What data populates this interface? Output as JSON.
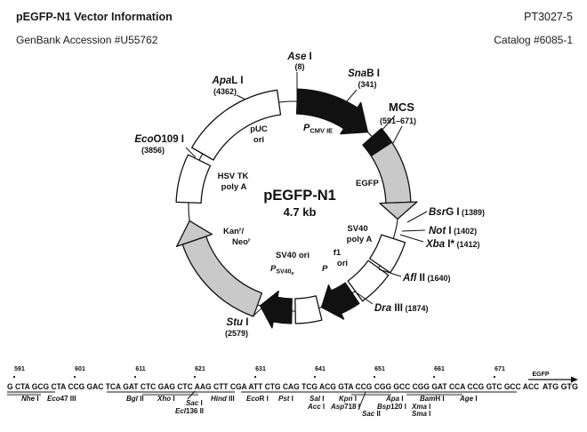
{
  "colors": {
    "ink": "#111111",
    "arrow_gray": "#c9c9c9",
    "bar_gray": "#9b9b9b"
  },
  "header": {
    "title": "pEGFP-N1 Vector Information",
    "part_number": "PT3027-5",
    "accession": "GenBank Accession #U55762",
    "catalog": "Catalog #6085-1"
  },
  "plasmid": {
    "name": "pEGFP-N1",
    "size": "4.7 kb",
    "sites": [
      {
        "italic": "Ase",
        "roman": " I",
        "pos": "(8)"
      },
      {
        "italic": "Sna",
        "roman": "B I",
        "pos": "(341)"
      },
      {
        "italic": "",
        "roman": "MCS",
        "pos": "(591–671)"
      },
      {
        "italic": "Bsr",
        "roman": "G I",
        "pos": " (1389)"
      },
      {
        "italic": "Not",
        "roman": " I",
        "pos": " (1402)"
      },
      {
        "italic": "Xba",
        "roman": " I*",
        "pos": " (1412)"
      },
      {
        "italic": "Afl",
        "roman": " II",
        "pos": " (1640)"
      },
      {
        "italic": "Dra",
        "roman": " III",
        "pos": " (1874)"
      },
      {
        "italic": "Stu",
        "roman": " I",
        "pos": "(2579)"
      },
      {
        "italic": "Eco",
        "roman": "O109 I",
        "pos": "(3856)"
      },
      {
        "italic": "Apa",
        "roman": "L I",
        "pos": "(4362)"
      }
    ],
    "features": {
      "pcmv_p": "P",
      "pcmv_sub": "CMV IE",
      "egfp": "EGFP",
      "puc_1": "pUC",
      "puc_2": "ori",
      "hsvtk_1": "HSV TK",
      "hsvtk_2": "poly A",
      "kan": "Kan",
      "neo": "Neo",
      "sup_r": "r",
      "slash": "/",
      "sv40pa_1": "SV40",
      "sv40pa_2": "poly A",
      "f1_1": "f1",
      "f1_2": "ori",
      "sv40ori": "SV40 ori",
      "psv40_p": "P",
      "psv40_sub": "SV40",
      "psv40_sub2": "e",
      "p_label": "P"
    }
  },
  "mcs": {
    "ruler": [
      "591",
      "601",
      "611",
      "621",
      "631",
      "641",
      "651",
      "661",
      "671"
    ],
    "egfp_arrow_label": "EGFP",
    "sequence": "G CTA GCG CTA CCG GAC TCA GAT CTC GAG CTC AAG CTT CGA ATT CTG CAG TCG ACG GTA CCG CGG GCC CGG GAT CCA CCG GTC GCC ACC",
    "start_codon": "ATG GTG",
    "labels": [
      {
        "i": "Nhe",
        "r": " I"
      },
      {
        "i": "Eco",
        "r": "47 III"
      },
      {
        "i": "Bgl",
        "r": " II"
      },
      {
        "i": "Xho",
        "r": " I"
      },
      {
        "i": "Sac",
        "r": " I"
      },
      {
        "i": "Ecl",
        "r": "136 II"
      },
      {
        "i": "Hind",
        "r": " III"
      },
      {
        "i": "Eco",
        "r": "R I"
      },
      {
        "i": "Pst",
        "r": " I"
      },
      {
        "i": "Sal",
        "r": " I"
      },
      {
        "i": "Acc",
        "r": " I"
      },
      {
        "i": "Kpn",
        "r": " I"
      },
      {
        "i": "Asp",
        "r": "718 I"
      },
      {
        "i": "Sac",
        "r": " II"
      },
      {
        "i": "Apa",
        "r": " I"
      },
      {
        "i": "Bsp",
        "r": "120 I"
      },
      {
        "i": "Xma",
        "r": " I"
      },
      {
        "i": "Sma",
        "r": " I"
      },
      {
        "i": "Bam",
        "r": "H I"
      },
      {
        "i": "Age",
        "r": " I"
      }
    ]
  }
}
